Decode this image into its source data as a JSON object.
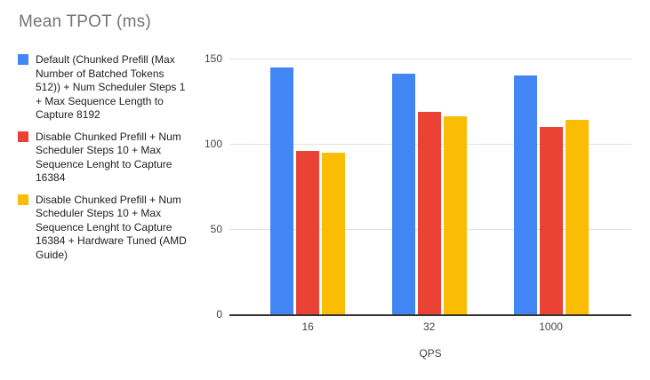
{
  "title": "Mean TPOT (ms)",
  "legend": {
    "items": [
      {
        "label": "Default (Chunked Prefill (Max Number of Batched Tokens 512)) + Num Scheduler Steps 1 + Max Sequence Length to Capture 8192",
        "color": "#4285F4"
      },
      {
        "label": "Disable Chunked Prefill + Num Scheduler Steps 10 + Max Sequence Lenght to Capture 16384",
        "color": "#EA4335"
      },
      {
        "label": "Disable Chunked Prefill + Num Scheduler Steps 10 + Max Sequence Lenght to Capture 16384 + Hardware Tuned (AMD Guide)",
        "color": "#FBBC04"
      }
    ]
  },
  "chart_data": {
    "type": "bar",
    "title": "Mean TPOT (ms)",
    "categories": [
      "16",
      "32",
      "1000"
    ],
    "series": [
      {
        "name": "Default (Chunked Prefill (Max Number of Batched Tokens 512)) + Num Scheduler Steps 1 + Max Sequence Length to Capture 8192",
        "color": "#4285F4",
        "values": [
          145,
          141,
          140
        ]
      },
      {
        "name": "Disable Chunked Prefill + Num Scheduler Steps 10 + Max Sequence Lenght to Capture 16384",
        "color": "#EA4335",
        "values": [
          96,
          119,
          110
        ]
      },
      {
        "name": "Disable Chunked Prefill + Num Scheduler Steps 10 + Max Sequence Lenght to Capture 16384 + Hardware Tuned (AMD Guide)",
        "color": "#FBBC04",
        "values": [
          95,
          116,
          114
        ]
      }
    ],
    "xlabel": "QPS",
    "ylabel": "",
    "ylim": [
      0,
      150
    ],
    "yticks": [
      0,
      50,
      100,
      150
    ],
    "grid": true,
    "legend_position": "left",
    "group_center_percents": [
      19.5,
      49.7,
      80.0
    ]
  },
  "colors": {
    "background": "#ffffff",
    "title_text": "#757575",
    "legend_text": "#202124",
    "axis_text": "#444444",
    "gridline": "#e2e2e2",
    "baseline": "#333333"
  }
}
